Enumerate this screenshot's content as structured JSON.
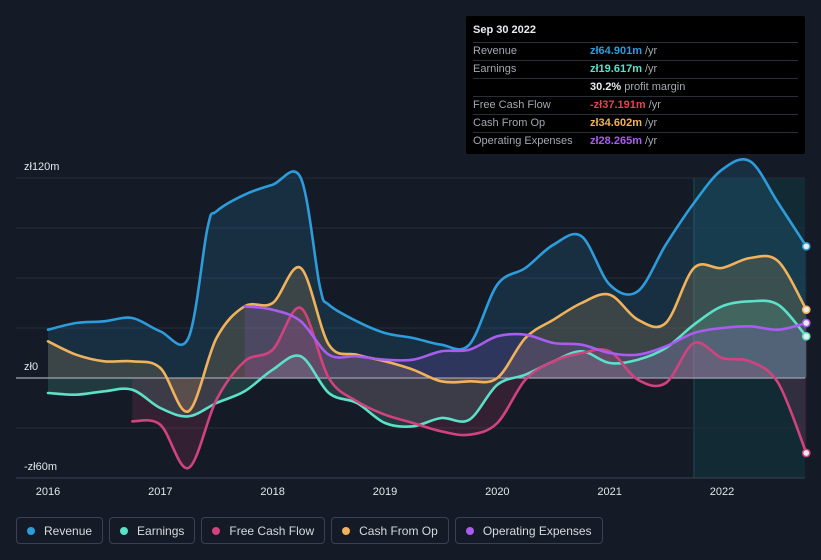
{
  "tooltip": {
    "date": "Sep 30 2022",
    "rows": [
      {
        "label": "Revenue",
        "value": "zł64.901m",
        "unit": "/yr",
        "color": "#2d9cdb"
      },
      {
        "label": "Earnings",
        "value": "zł19.617m",
        "unit": "/yr",
        "color": "#5ce1c8"
      },
      {
        "label": "",
        "value": "30.2%",
        "unit": "profit margin",
        "color": "#e9ebee"
      },
      {
        "label": "Free Cash Flow",
        "value": "-zł37.191m",
        "unit": "/yr",
        "color": "#e8414f"
      },
      {
        "label": "Cash From Op",
        "value": "zł34.602m",
        "unit": "/yr",
        "color": "#f0b35b"
      },
      {
        "label": "Operating Expenses",
        "value": "zł28.265m",
        "unit": "/yr",
        "color": "#a95cf0"
      }
    ]
  },
  "legend": [
    {
      "label": "Revenue",
      "color": "#2d9cdb"
    },
    {
      "label": "Earnings",
      "color": "#5ce1c8"
    },
    {
      "label": "Free Cash Flow",
      "color": "#d1437e"
    },
    {
      "label": "Cash From Op",
      "color": "#f0b35b"
    },
    {
      "label": "Operating Expenses",
      "color": "#a95cf0"
    }
  ],
  "chart_data": {
    "type": "area",
    "title": "",
    "xlabel": "",
    "ylabel": "",
    "ylim": [
      -60,
      120
    ],
    "y_ticks": [
      {
        "value": 120,
        "label": "zł120m"
      },
      {
        "value": 0,
        "label": "zł0"
      },
      {
        "value": -60,
        "label": "-zł60m"
      }
    ],
    "x_ticks": [
      {
        "value": 2016.0,
        "label": "2016"
      },
      {
        "value": 2017.0,
        "label": "2017"
      },
      {
        "value": 2018.0,
        "label": "2018"
      },
      {
        "value": 2019.0,
        "label": "2019"
      },
      {
        "value": 2020.0,
        "label": "2020"
      },
      {
        "value": 2021.0,
        "label": "2021"
      },
      {
        "value": 2022.0,
        "label": "2022"
      }
    ],
    "xlim": [
      2015.7,
      2022.75
    ],
    "highlight_start": 2021.75,
    "series": [
      {
        "name": "Revenue",
        "color": "#2d9cdb",
        "points": [
          [
            2016.0,
            29
          ],
          [
            2016.25,
            33
          ],
          [
            2016.5,
            34
          ],
          [
            2016.75,
            36
          ],
          [
            2017.0,
            28
          ],
          [
            2017.25,
            24
          ],
          [
            2017.42,
            90
          ],
          [
            2017.5,
            100
          ],
          [
            2017.75,
            110
          ],
          [
            2018.0,
            116
          ],
          [
            2018.25,
            120
          ],
          [
            2018.42,
            55
          ],
          [
            2018.5,
            44
          ],
          [
            2018.75,
            34
          ],
          [
            2019.0,
            27
          ],
          [
            2019.25,
            24
          ],
          [
            2019.5,
            20
          ],
          [
            2019.75,
            20
          ],
          [
            2020.0,
            56
          ],
          [
            2020.25,
            66
          ],
          [
            2020.5,
            80
          ],
          [
            2020.75,
            85
          ],
          [
            2021.0,
            56
          ],
          [
            2021.25,
            52
          ],
          [
            2021.5,
            80
          ],
          [
            2021.75,
            105
          ],
          [
            2022.0,
            125
          ],
          [
            2022.25,
            130
          ],
          [
            2022.5,
            105
          ],
          [
            2022.75,
            79
          ]
        ]
      },
      {
        "name": "Earnings",
        "color": "#5ce1c8",
        "points": [
          [
            2016.0,
            -9
          ],
          [
            2016.25,
            -10
          ],
          [
            2016.5,
            -8
          ],
          [
            2016.75,
            -7
          ],
          [
            2017.0,
            -18
          ],
          [
            2017.25,
            -23
          ],
          [
            2017.5,
            -15
          ],
          [
            2017.75,
            -8
          ],
          [
            2018.0,
            5
          ],
          [
            2018.25,
            13
          ],
          [
            2018.5,
            -9
          ],
          [
            2018.75,
            -15
          ],
          [
            2019.0,
            -27
          ],
          [
            2019.25,
            -29
          ],
          [
            2019.5,
            -24
          ],
          [
            2019.75,
            -25
          ],
          [
            2020.0,
            -4
          ],
          [
            2020.25,
            2
          ],
          [
            2020.5,
            10
          ],
          [
            2020.75,
            16
          ],
          [
            2021.0,
            9
          ],
          [
            2021.25,
            11
          ],
          [
            2021.5,
            18
          ],
          [
            2021.75,
            32
          ],
          [
            2022.0,
            43
          ],
          [
            2022.25,
            46
          ],
          [
            2022.5,
            44
          ],
          [
            2022.75,
            25
          ]
        ]
      },
      {
        "name": "Free Cash Flow",
        "color": "#d1437e",
        "points": [
          [
            2016.75,
            -26
          ],
          [
            2017.0,
            -28
          ],
          [
            2017.25,
            -54
          ],
          [
            2017.5,
            -13
          ],
          [
            2017.75,
            10
          ],
          [
            2018.0,
            17
          ],
          [
            2018.25,
            42
          ],
          [
            2018.5,
            0
          ],
          [
            2018.75,
            -14
          ],
          [
            2019.0,
            -22
          ],
          [
            2019.25,
            -27
          ],
          [
            2019.5,
            -32
          ],
          [
            2019.75,
            -34
          ],
          [
            2020.0,
            -27
          ],
          [
            2020.25,
            -1
          ],
          [
            2020.5,
            10
          ],
          [
            2020.75,
            15
          ],
          [
            2021.0,
            16
          ],
          [
            2021.25,
            -1
          ],
          [
            2021.5,
            -3
          ],
          [
            2021.75,
            21
          ],
          [
            2022.0,
            12
          ],
          [
            2022.25,
            10
          ],
          [
            2022.5,
            -3
          ],
          [
            2022.75,
            -45
          ]
        ]
      },
      {
        "name": "Cash From Op",
        "color": "#f0b35b",
        "points": [
          [
            2016.0,
            22
          ],
          [
            2016.25,
            14
          ],
          [
            2016.5,
            10
          ],
          [
            2016.75,
            10
          ],
          [
            2017.0,
            6
          ],
          [
            2017.25,
            -20
          ],
          [
            2017.5,
            24
          ],
          [
            2017.75,
            43
          ],
          [
            2018.0,
            45
          ],
          [
            2018.25,
            66
          ],
          [
            2018.5,
            20
          ],
          [
            2018.75,
            14
          ],
          [
            2019.0,
            10
          ],
          [
            2019.25,
            5
          ],
          [
            2019.5,
            -2
          ],
          [
            2019.75,
            -2
          ],
          [
            2020.0,
            0
          ],
          [
            2020.25,
            24
          ],
          [
            2020.5,
            35
          ],
          [
            2020.75,
            45
          ],
          [
            2021.0,
            50
          ],
          [
            2021.25,
            35
          ],
          [
            2021.5,
            33
          ],
          [
            2021.75,
            66
          ],
          [
            2022.0,
            66
          ],
          [
            2022.25,
            72
          ],
          [
            2022.5,
            70
          ],
          [
            2022.75,
            41
          ]
        ]
      },
      {
        "name": "Operating Expenses",
        "color": "#a95cf0",
        "points": [
          [
            2017.75,
            43
          ],
          [
            2018.0,
            41
          ],
          [
            2018.25,
            34
          ],
          [
            2018.5,
            14
          ],
          [
            2018.75,
            13
          ],
          [
            2019.0,
            11
          ],
          [
            2019.25,
            11
          ],
          [
            2019.5,
            16
          ],
          [
            2019.75,
            17
          ],
          [
            2020.0,
            25
          ],
          [
            2020.25,
            26
          ],
          [
            2020.5,
            21
          ],
          [
            2020.75,
            20
          ],
          [
            2021.0,
            15
          ],
          [
            2021.25,
            14
          ],
          [
            2021.5,
            19
          ],
          [
            2021.75,
            27
          ],
          [
            2022.0,
            30
          ],
          [
            2022.25,
            31
          ],
          [
            2022.5,
            29
          ],
          [
            2022.75,
            33
          ]
        ]
      }
    ]
  }
}
